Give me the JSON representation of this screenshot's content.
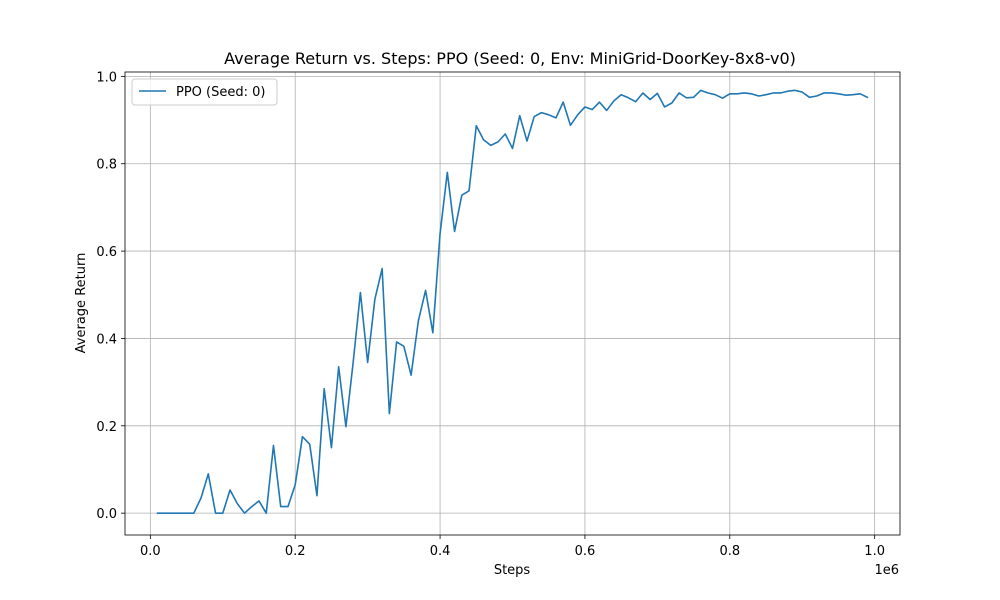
{
  "chart_data": {
    "type": "line",
    "title": "Average Return vs. Steps: PPO (Seed: 0, Env: MiniGrid-DoorKey-8x8-v0)",
    "xlabel": "Steps",
    "ylabel": "Average Return",
    "x_offset_label": "1e6",
    "xlim": [
      -35000,
      1035000
    ],
    "ylim": [
      -0.05,
      1.01
    ],
    "xticks": [
      0,
      200000,
      400000,
      600000,
      800000,
      1000000
    ],
    "xtick_labels": [
      "0.0",
      "0.2",
      "0.4",
      "0.6",
      "0.8",
      "1.0"
    ],
    "yticks": [
      0,
      0.2,
      0.4,
      0.6,
      0.8,
      1.0
    ],
    "ytick_labels": [
      "0.0",
      "0.2",
      "0.4",
      "0.6",
      "0.8",
      "1.0"
    ],
    "grid": true,
    "legend_position": "top-left",
    "series": [
      {
        "name": "PPO (Seed: 0)",
        "color": "#1f77b4",
        "x": [
          10000,
          20000,
          30000,
          40000,
          50000,
          60000,
          70000,
          80000,
          90000,
          100000,
          110000,
          120000,
          130000,
          140000,
          150000,
          160000,
          170000,
          180000,
          190000,
          200000,
          210000,
          220000,
          230000,
          240000,
          250000,
          260000,
          270000,
          280000,
          290000,
          300000,
          310000,
          320000,
          330000,
          340000,
          350000,
          360000,
          370000,
          380000,
          390000,
          400000,
          410000,
          420000,
          430000,
          440000,
          450000,
          460000,
          470000,
          480000,
          490000,
          500000,
          510000,
          520000,
          530000,
          540000,
          550000,
          560000,
          570000,
          580000,
          590000,
          600000,
          610000,
          620000,
          630000,
          640000,
          650000,
          660000,
          670000,
          680000,
          690000,
          700000,
          710000,
          720000,
          730000,
          740000,
          750000,
          760000,
          770000,
          780000,
          790000,
          800000,
          810000,
          820000,
          830000,
          840000,
          850000,
          860000,
          870000,
          880000,
          890000,
          900000,
          910000,
          920000,
          930000,
          940000,
          950000,
          960000,
          970000,
          980000,
          990000
        ],
        "y": [
          0,
          0,
          0,
          0,
          0,
          0,
          0.035,
          0.09,
          0,
          0,
          0.053,
          0.022,
          0,
          0.015,
          0.028,
          0,
          0.155,
          0.015,
          0.015,
          0.065,
          0.175,
          0.158,
          0.04,
          0.285,
          0.15,
          0.335,
          0.198,
          0.345,
          0.505,
          0.345,
          0.49,
          0.56,
          0.228,
          0.392,
          0.382,
          0.316,
          0.44,
          0.51,
          0.413,
          0.64,
          0.78,
          0.645,
          0.728,
          0.738,
          0.887,
          0.855,
          0.842,
          0.85,
          0.868,
          0.835,
          0.91,
          0.852,
          0.908,
          0.917,
          0.912,
          0.905,
          0.941,
          0.888,
          0.912,
          0.93,
          0.924,
          0.941,
          0.922,
          0.944,
          0.958,
          0.951,
          0.942,
          0.962,
          0.947,
          0.961,
          0.93,
          0.939,
          0.962,
          0.951,
          0.952,
          0.968,
          0.962,
          0.958,
          0.95,
          0.96,
          0.96,
          0.962,
          0.96,
          0.955,
          0.958,
          0.962,
          0.962,
          0.966,
          0.968,
          0.964,
          0.952,
          0.955,
          0.962,
          0.962,
          0.96,
          0.957,
          0.958,
          0.96,
          0.952
        ]
      }
    ]
  }
}
